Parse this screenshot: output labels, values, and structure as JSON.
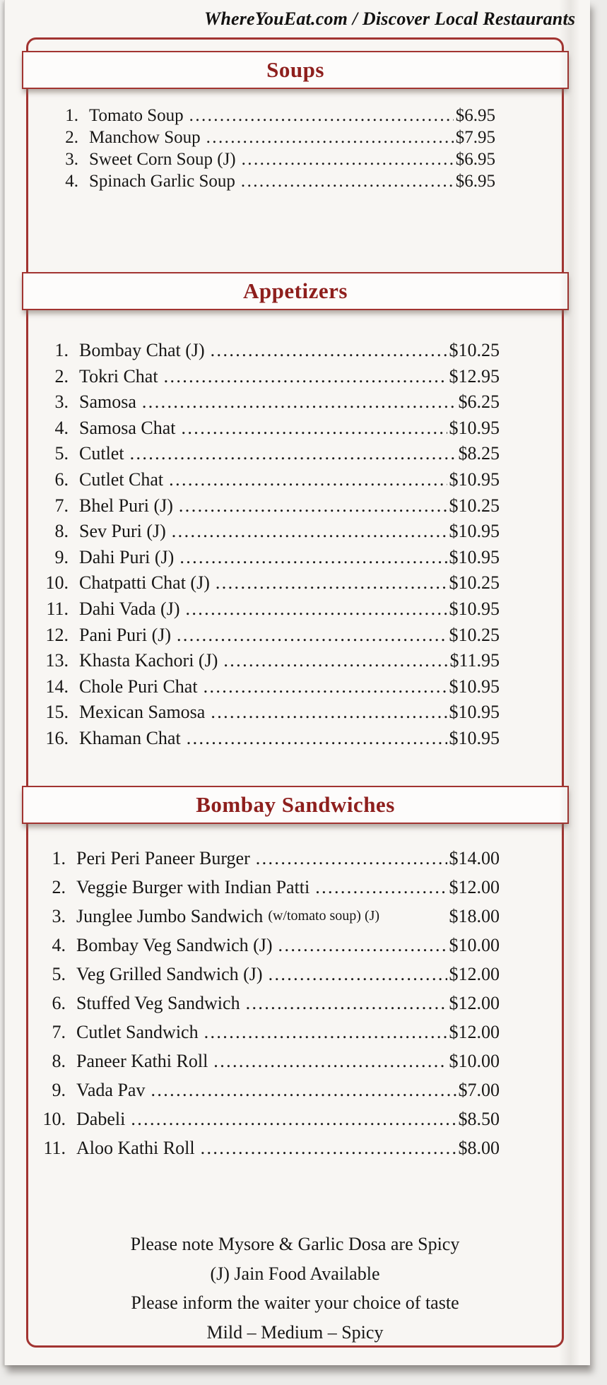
{
  "page": {
    "site_header": "WhereYouEat.com / Discover Local Restaurants"
  },
  "colors": {
    "accent_red": "#a23431",
    "section_title_red": "#8e1f1d",
    "paper": "#f8f6f3"
  },
  "sections": [
    {
      "title": "Soups",
      "items": [
        {
          "num": "1.",
          "name": "Tomato Soup",
          "note": "",
          "leader": true,
          "price": "$6.95"
        },
        {
          "num": "2.",
          "name": "Manchow Soup",
          "note": "",
          "leader": true,
          "price": "$7.95"
        },
        {
          "num": "3.",
          "name": "Sweet Corn Soup (J)",
          "note": "",
          "leader": true,
          "price": "$6.95"
        },
        {
          "num": "4.",
          "name": "Spinach Garlic Soup",
          "note": "",
          "leader": true,
          "price": "$6.95"
        }
      ]
    },
    {
      "title": "Appetizers",
      "items": [
        {
          "num": "1.",
          "name": "Bombay Chat (J)",
          "note": "",
          "leader": true,
          "price": "$10.25"
        },
        {
          "num": "2.",
          "name": "Tokri Chat",
          "note": "",
          "leader": true,
          "price": "$12.95"
        },
        {
          "num": "3.",
          "name": "Samosa",
          "note": "",
          "leader": true,
          "price": "$6.25"
        },
        {
          "num": "4.",
          "name": "Samosa Chat",
          "note": "",
          "leader": true,
          "price": "$10.95"
        },
        {
          "num": "5.",
          "name": "Cutlet",
          "note": "",
          "leader": true,
          "price": "$8.25"
        },
        {
          "num": "6.",
          "name": "Cutlet Chat",
          "note": "",
          "leader": true,
          "price": "$10.95"
        },
        {
          "num": "7.",
          "name": "Bhel Puri (J)",
          "note": "",
          "leader": true,
          "price": "$10.25"
        },
        {
          "num": "8.",
          "name": "Sev Puri (J)",
          "note": "",
          "leader": true,
          "price": "$10.95"
        },
        {
          "num": "9.",
          "name": "Dahi Puri (J)",
          "note": "",
          "leader": true,
          "price": "$10.95"
        },
        {
          "num": "10.",
          "name": "Chatpatti Chat (J)",
          "note": "",
          "leader": true,
          "price": "$10.25"
        },
        {
          "num": "11.",
          "name": "Dahi Vada (J)",
          "note": "",
          "leader": true,
          "price": "$10.95"
        },
        {
          "num": "12.",
          "name": "Pani Puri (J)",
          "note": "",
          "leader": true,
          "price": "$10.25"
        },
        {
          "num": "13.",
          "name": "Khasta Kachori (J)",
          "note": "",
          "leader": true,
          "price": "$11.95"
        },
        {
          "num": "14.",
          "name": "Chole Puri Chat",
          "note": "",
          "leader": true,
          "price": "$10.95"
        },
        {
          "num": "15.",
          "name": "Mexican Samosa",
          "note": "",
          "leader": true,
          "price": "$10.95"
        },
        {
          "num": "16.",
          "name": "Khaman Chat",
          "note": "",
          "leader": true,
          "price": "$10.95"
        }
      ]
    },
    {
      "title": "Bombay Sandwiches",
      "items": [
        {
          "num": "1.",
          "name": "Peri Peri Paneer Burger",
          "note": "",
          "leader": true,
          "price": "$14.00"
        },
        {
          "num": "2.",
          "name": "Veggie Burger with Indian Patti",
          "note": "",
          "leader": true,
          "price": "$12.00"
        },
        {
          "num": "3.",
          "name": "Junglee Jumbo Sandwich",
          "note": "(w/tomato soup) (J)",
          "leader": false,
          "price": "$18.00"
        },
        {
          "num": "4.",
          "name": "Bombay Veg Sandwich (J)",
          "note": "",
          "leader": true,
          "price": "$10.00"
        },
        {
          "num": "5.",
          "name": "Veg Grilled Sandwich (J)",
          "note": "",
          "leader": true,
          "price": "$12.00"
        },
        {
          "num": "6.",
          "name": "Stuffed Veg Sandwich",
          "note": "",
          "leader": true,
          "price": "$12.00"
        },
        {
          "num": "7.",
          "name": "Cutlet Sandwich",
          "note": "",
          "leader": true,
          "price": "$12.00"
        },
        {
          "num": "8.",
          "name": "Paneer Kathi Roll",
          "note": "",
          "leader": true,
          "price": "$10.00"
        },
        {
          "num": "9.",
          "name": "Vada Pav",
          "note": "",
          "leader": true,
          "price": "$7.00"
        },
        {
          "num": "10.",
          "name": "Dabeli",
          "note": "",
          "leader": true,
          "price": "$8.50"
        },
        {
          "num": "11.",
          "name": "Aloo Kathi Roll",
          "note": "",
          "leader": true,
          "price": "$8.00"
        }
      ]
    }
  ],
  "footer": {
    "lines": [
      "Please note Mysore & Garlic Dosa are Spicy",
      "(J) Jain Food Available",
      "Please inform the waiter your choice of taste",
      "Mild – Medium – Spicy"
    ]
  }
}
